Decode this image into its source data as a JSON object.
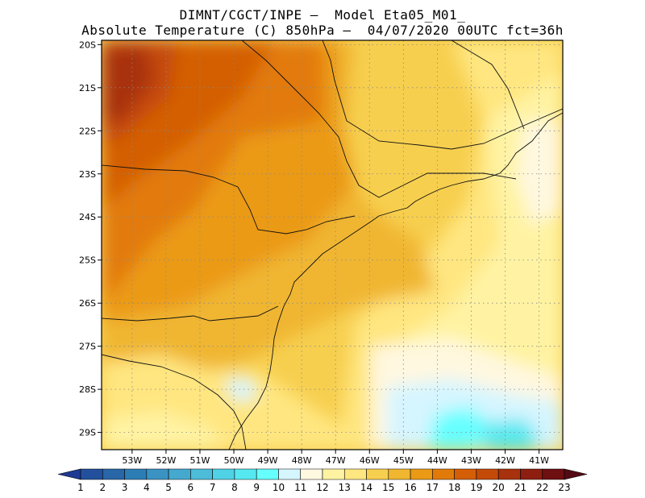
{
  "title": {
    "line1": "DIMNT/CGCT/INPE –  Model Eta05_M01_",
    "line2": "Absolute Temperature (C) 850hPa –  04/07/2020 00UTC fct=36h"
  },
  "map": {
    "lon_range": [
      -53.9,
      -40.3
    ],
    "lat_range": [
      -29.4,
      -19.9
    ],
    "lat_ticks": [
      "20S",
      "21S",
      "22S",
      "23S",
      "24S",
      "25S",
      "26S",
      "27S",
      "28S",
      "29S"
    ],
    "lat_values": [
      -20,
      -21,
      -22,
      -23,
      -24,
      -25,
      -26,
      -27,
      -28,
      -29
    ],
    "lon_ticks": [
      "53W",
      "52W",
      "51W",
      "50W",
      "49W",
      "48W",
      "47W",
      "46W",
      "45W",
      "44W",
      "43W",
      "42W",
      "41W"
    ],
    "lon_values": [
      -53,
      -52,
      -51,
      -50,
      -49,
      -48,
      -47,
      -46,
      -45,
      -44,
      -43,
      -42,
      -41
    ],
    "grid": true,
    "field": "850hPa temperature, warmest (~19-20C) in northwest, coolest (~10-11C) in southeast ocean"
  },
  "colorbar": {
    "labels": [
      "1",
      "2",
      "3",
      "4",
      "5",
      "6",
      "7",
      "8",
      "9",
      "10",
      "11",
      "12",
      "13",
      "14",
      "15",
      "16",
      "17",
      "18",
      "19",
      "20",
      "21",
      "22",
      "23"
    ],
    "colors": [
      "#1f3a93",
      "#23509c",
      "#2866a8",
      "#2c7db5",
      "#3a93c2",
      "#45a8cf",
      "#4dbcd9",
      "#50d2e6",
      "#55e8f0",
      "#66ffff",
      "#d5f5ff",
      "#fff8e0",
      "#fff3a3",
      "#ffe680",
      "#f7cf4f",
      "#f0b630",
      "#eb9a15",
      "#e27a0a",
      "#d45e05",
      "#c44a08",
      "#a8320d",
      "#8e1e10",
      "#6e0f12",
      "#530a14"
    ]
  }
}
